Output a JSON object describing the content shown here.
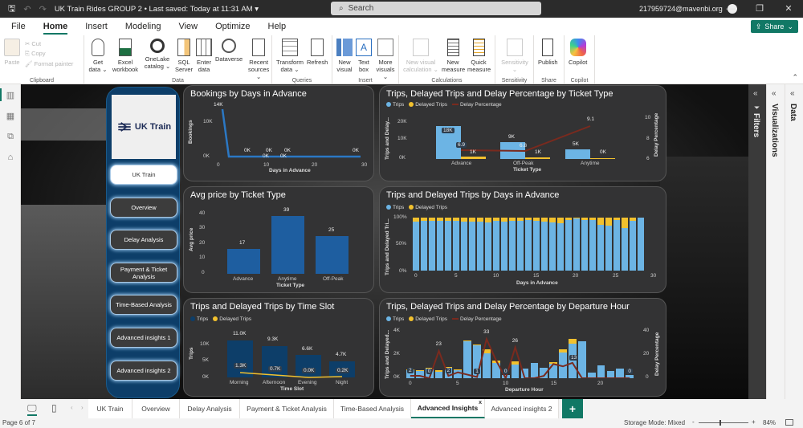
{
  "titlebar": {
    "title": "UK Train Rides GROUP 2 • Last saved: Today at 11:31 AM ▾",
    "search_placeholder": "Search",
    "account": "217959724@mavenbi.org",
    "share_label": "Share"
  },
  "menu": [
    "File",
    "Home",
    "Insert",
    "Modeling",
    "View",
    "Optimize",
    "Help"
  ],
  "ribbon": {
    "clipboard": {
      "paste": "Paste",
      "cut": "Cut",
      "copy": "Copy",
      "format_painter": "Format painter",
      "label": "Clipboard"
    },
    "data": {
      "items": [
        "Get data ⌄",
        "Excel workbook",
        "OneLake catalog ⌄",
        "SQL Server",
        "Enter data",
        "Dataverse",
        "Recent sources ⌄"
      ],
      "label": "Data"
    },
    "queries": {
      "items": [
        "Transform data ⌄",
        "Refresh"
      ],
      "label": "Queries"
    },
    "insert": {
      "items": [
        "New visual",
        "Text box",
        "More visuals ⌄"
      ],
      "label": "Insert"
    },
    "calculations": {
      "items": [
        "New visual calculation ⌄",
        "New measure",
        "Quick measure"
      ],
      "label": "Calculations"
    },
    "sensitivity": {
      "items": [
        "Sensitivity ⌄"
      ],
      "label": "Sensitivity"
    },
    "share": {
      "items": [
        "Publish"
      ],
      "label": "Share"
    },
    "copilot": {
      "items": [
        "Copilot"
      ],
      "label": "Copilot"
    }
  },
  "nav": {
    "logo_text": "UK Train",
    "buttons": [
      "UK Train",
      "Overview",
      "Delay Analysis",
      "Payment & Ticket Analysis",
      "Time-Based Analysis",
      "Advanced insights 1",
      "Advanced insights 2"
    ]
  },
  "right_panes": {
    "filters": "Filters",
    "visualizations": "Visualizations",
    "data": "Data"
  },
  "page_tabs": [
    "UK Train",
    "Overview",
    "Delay Analysis",
    "Payment & Ticket Analysis",
    "Time-Based Analysis",
    "Advanced Insights",
    "Advanced insights 2"
  ],
  "active_tab": "Advanced Insights",
  "status": {
    "page": "Page 6 of 7",
    "storage": "Storage Mode: Mixed",
    "zoom": "84%"
  },
  "colors": {
    "trips": "#6cb4e4",
    "delayed": "#f2c12e",
    "delay_pct": "#7a2a1e",
    "navy": "#0d3e69",
    "accent": "#117865"
  },
  "chart_data": [
    {
      "type": "line",
      "title": "Bookings by Days in Advance",
      "xlabel": "Days in Advance",
      "ylabel": "Bookings",
      "x_ticks": [
        "0",
        "10",
        "20",
        "30"
      ],
      "y_ticks": [
        "0K",
        "10K"
      ],
      "x": [
        1,
        2,
        8,
        9,
        10,
        12,
        13,
        27
      ],
      "values": [
        14000,
        0,
        0,
        0,
        0,
        0,
        0,
        0
      ],
      "labels": [
        "14K",
        "0K",
        "0K",
        "0K",
        "0K",
        "0K",
        "0K",
        "0K"
      ]
    },
    {
      "type": "bar",
      "title": "Trips, Delayed Trips and Delay Percentage by Ticket Type",
      "legend": [
        "Trips",
        "Delayed Trips",
        "Delay Percentage"
      ],
      "xlabel": "Ticket Type",
      "ylabel": "Trips and Delay...",
      "y2label": "Delay Percentage",
      "categories": [
        "Advance",
        "Off-Peak",
        "Anytime"
      ],
      "y_ticks": [
        "0K",
        "10K",
        "20K"
      ],
      "y2_ticks": [
        "6",
        "8",
        "10"
      ],
      "series": [
        {
          "name": "Trips",
          "values": [
            18000,
            9000,
            5000
          ],
          "labels": [
            "18K",
            "9K",
            "5K"
          ]
        },
        {
          "name": "Delayed Trips",
          "values": [
            1000,
            1000,
            0
          ],
          "labels": [
            "1K",
            "1K",
            "0K"
          ]
        },
        {
          "name": "Delay Percentage",
          "values": [
            6.9,
            6.8,
            9.1
          ]
        }
      ]
    },
    {
      "type": "bar",
      "title": "Avg price by Ticket Type",
      "xlabel": "Ticket Type",
      "ylabel": "Avg price",
      "categories": [
        "Advance",
        "Anytime",
        "Off-Peak"
      ],
      "values": [
        17,
        39,
        25
      ],
      "y_ticks": [
        "0",
        "10",
        "20",
        "30",
        "40"
      ],
      "ylim": [
        0,
        40
      ]
    },
    {
      "type": "bar",
      "title": "Trips and Delayed Trips by Days in Advance",
      "subtype": "100% stacked",
      "legend": [
        "Trips",
        "Delayed Trips"
      ],
      "xlabel": "Days in Advance",
      "ylabel": "Trips and Delayed Tri...",
      "x_ticks": [
        "0",
        "5",
        "10",
        "15",
        "20",
        "25",
        "30"
      ],
      "y_ticks": [
        "0%",
        "50%",
        "100%"
      ],
      "x": [
        0,
        1,
        2,
        3,
        4,
        5,
        6,
        7,
        8,
        9,
        10,
        11,
        12,
        13,
        14,
        15,
        16,
        17,
        18,
        19,
        20,
        21,
        22,
        23,
        24,
        25,
        26,
        27,
        28
      ],
      "delayed_pct": [
        7,
        6,
        6,
        6,
        6,
        6,
        7,
        7,
        7,
        9,
        6,
        8,
        6,
        6,
        5,
        6,
        7,
        9,
        10,
        4,
        2,
        4,
        4,
        13,
        15,
        5,
        20,
        6,
        0
      ]
    },
    {
      "type": "bar",
      "title": "Trips and Delayed Trips by Time Slot",
      "legend": [
        "Trips",
        "Delayed Trips"
      ],
      "xlabel": "Time Slot",
      "ylabel": "Trips",
      "categories": [
        "Morning",
        "Afternoon",
        "Evening",
        "Night"
      ],
      "y_ticks": [
        "0K",
        "5K",
        "10K"
      ],
      "series": [
        {
          "name": "Trips",
          "values": [
            11000,
            9300,
            6600,
            4700
          ],
          "labels": [
            "11.0K",
            "9.3K",
            "6.6K",
            "4.7K"
          ]
        },
        {
          "name": "Delayed Trips",
          "values": [
            1300,
            700,
            0,
            200
          ],
          "labels": [
            "1.3K",
            "0.7K",
            "0.0K",
            "0.2K"
          ]
        }
      ]
    },
    {
      "type": "bar",
      "title": "Trips, Delayed Trips and Delay Percentage by Departure Hour",
      "legend": [
        "Trips",
        "Delayed Trips",
        "Delay Percentage"
      ],
      "xlabel": "Departure Hour",
      "ylabel": "Trips and Delayed...",
      "y2label": "Delay Percentage",
      "x_ticks": [
        "0",
        "5",
        "10",
        "15",
        "20"
      ],
      "y_ticks": [
        "0K",
        "2K",
        "4K"
      ],
      "y2_ticks": [
        "0",
        "20",
        "40"
      ],
      "x": [
        0,
        1,
        2,
        3,
        4,
        5,
        6,
        7,
        8,
        9,
        10,
        11,
        12,
        13,
        14,
        15,
        16,
        17,
        18,
        19,
        20,
        21,
        22,
        23
      ],
      "series": [
        {
          "name": "Trips",
          "values": [
            700,
            650,
            900,
            550,
            950,
            700,
            3100,
            2800,
            2100,
            1300,
            300,
            1150,
            800,
            1300,
            850,
            1200,
            2200,
            2900,
            3100,
            450,
            1100,
            600,
            800,
            300
          ]
        },
        {
          "name": "Delayed Trips",
          "values": [
            20,
            15,
            10,
            150,
            30,
            40,
            80,
            30,
            350,
            200,
            0,
            300,
            0,
            0,
            0,
            150,
            250,
            400,
            0,
            0,
            0,
            0,
            0,
            0
          ]
        },
        {
          "name": "Delay Percentage",
          "values": [
            2,
            2,
            0,
            23,
            2,
            5,
            3,
            1,
            33,
            15,
            0,
            26,
            0,
            0,
            2,
            12,
            10,
            13,
            0,
            0,
            0,
            0,
            0,
            0
          ],
          "labels_shown": {
            "0": "2",
            "2": "0",
            "3": "23",
            "4": "2",
            "7": "1",
            "8": "33",
            "10": "0",
            "11": "26",
            "17": "13",
            "23": "0"
          }
        }
      ]
    }
  ]
}
